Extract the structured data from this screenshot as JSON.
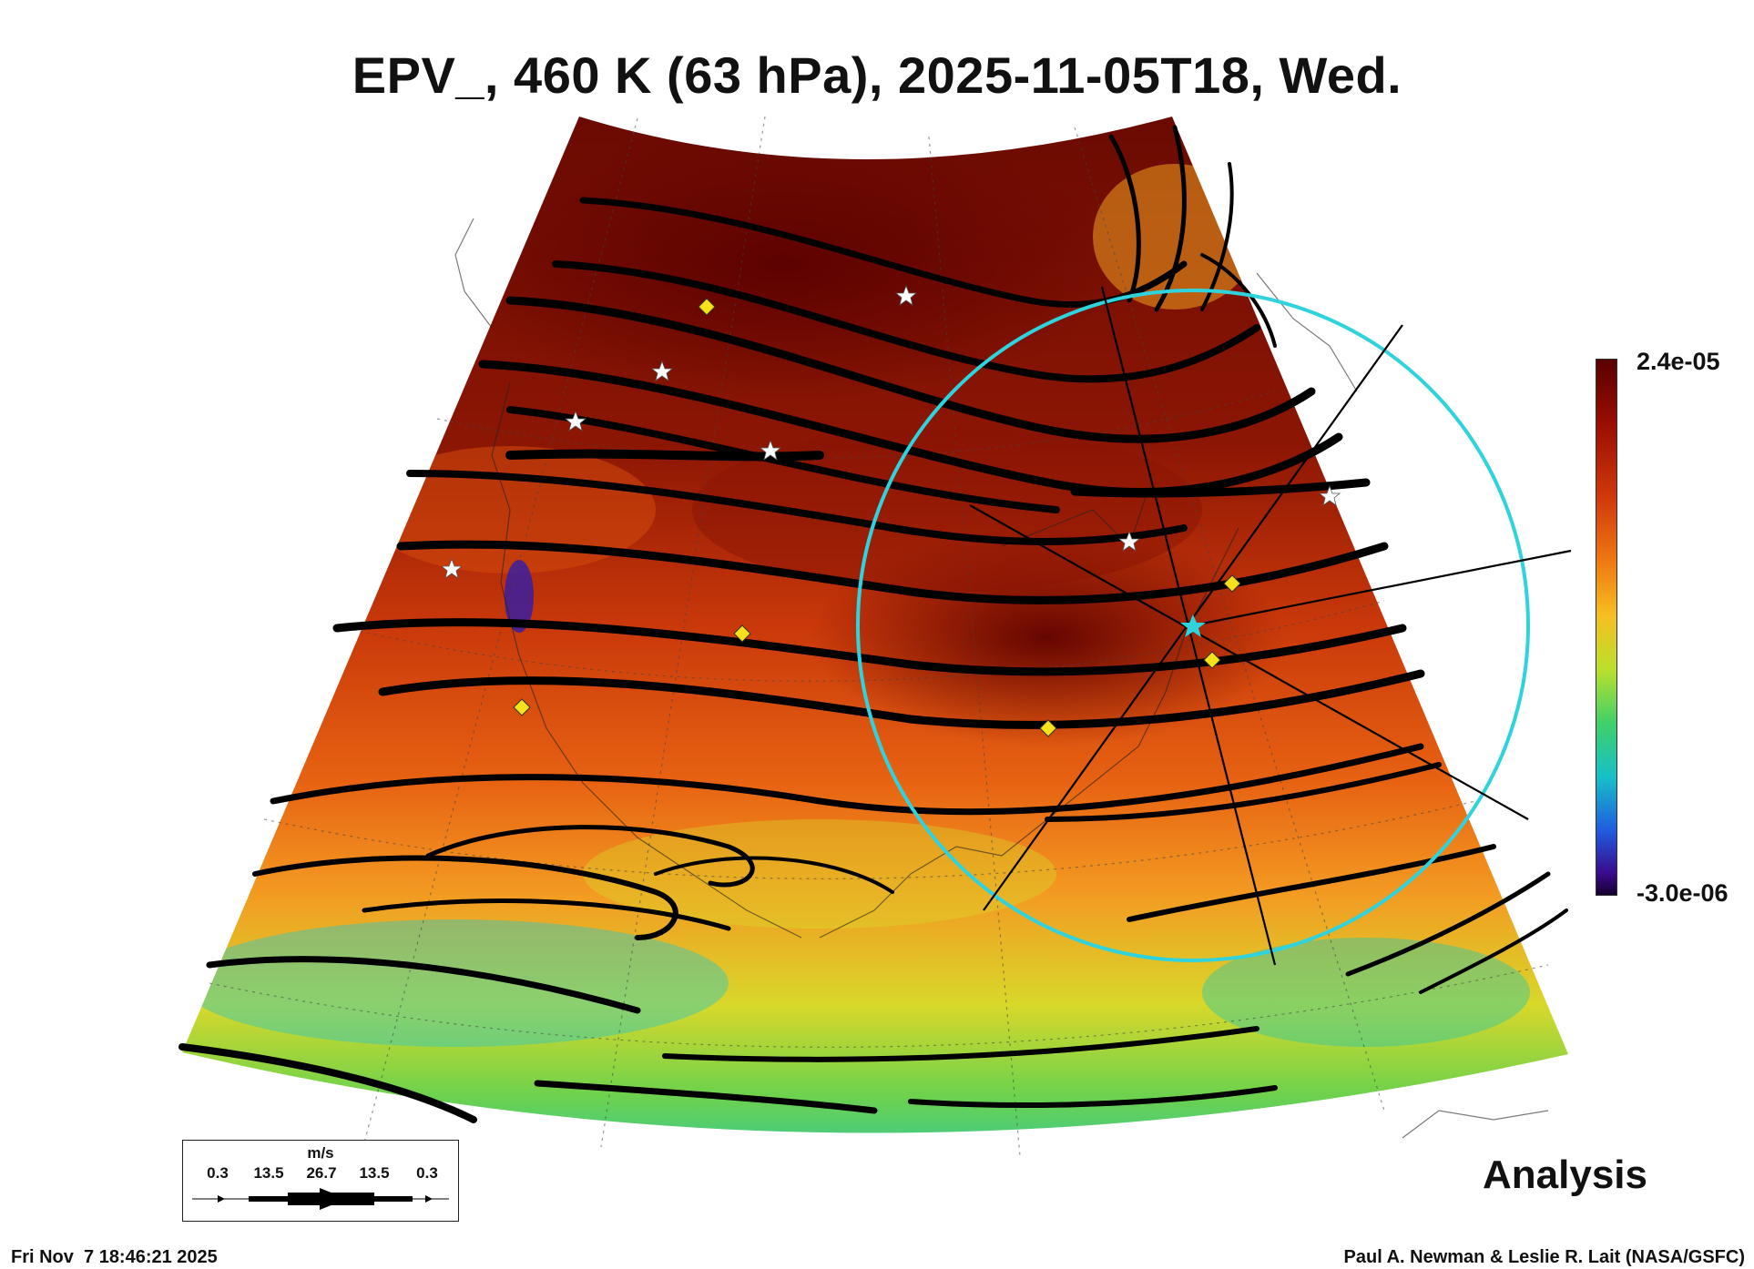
{
  "title": "EPV_, 460 K (63 hPa), 2025-11-05T18, Wed.",
  "colorbar": {
    "max_label": "2.4e-05",
    "min_label": "-3.0e-06",
    "colors": [
      "#5a0000",
      "#9a0d02",
      "#d13a0a",
      "#f07a12",
      "#f6c021",
      "#b9e02c",
      "#3fd06a",
      "#16c0c8",
      "#1f5ce0",
      "#3a0a8c",
      "#16002e"
    ]
  },
  "legend": {
    "unit": "m/s",
    "ticks": [
      "0.3",
      "13.5",
      "26.7",
      "13.5",
      "0.3"
    ]
  },
  "label_analysis": "Analysis",
  "footer": {
    "timestamp": "Fri Nov  7 18:46:21 2025",
    "credit": "Paul A. Newman & Leslie R. Lait (NASA/GSFC)"
  },
  "map": {
    "projection": "conic",
    "region": "North America",
    "overlays": [
      "streamlines",
      "stations-white-star",
      "stations-yellow-diamond",
      "cyan-range-ring",
      "radial-lines"
    ]
  }
}
